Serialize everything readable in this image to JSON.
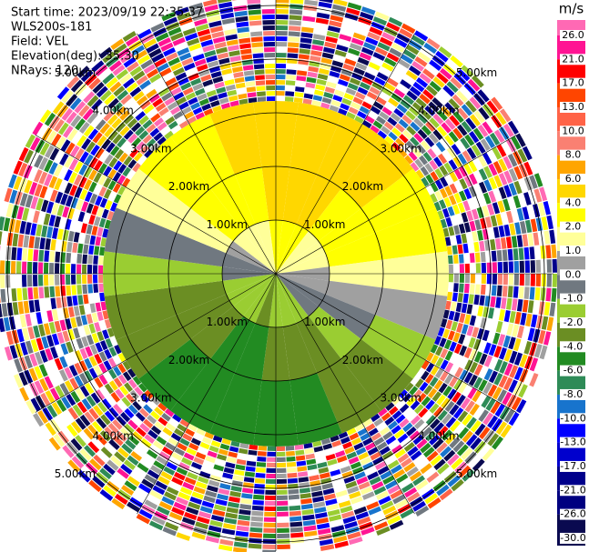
{
  "chart_data": {
    "type": "ppi",
    "info": [
      "Start time: 2023/09/19 22:35:37",
      "WLS200s-181",
      "Field: VEL",
      "Elevation(deg): 35.30",
      "NRays: 120"
    ],
    "range_labels": [
      "1.00km",
      "2.00km",
      "3.00km",
      "4.00km",
      "5.00km"
    ],
    "colorbar": {
      "title": "m/s",
      "ticks": [
        {
          "value": 26,
          "label": "26.0"
        },
        {
          "value": 21,
          "label": "21.0"
        },
        {
          "value": 17,
          "label": "17.0"
        },
        {
          "value": 13,
          "label": "13.0"
        },
        {
          "value": 10,
          "label": "10.0"
        },
        {
          "value": 8,
          "label": "8.0"
        },
        {
          "value": 6,
          "label": "6.0"
        },
        {
          "value": 4,
          "label": "4.0"
        },
        {
          "value": 2,
          "label": "2.0"
        },
        {
          "value": 1,
          "label": "1.0"
        },
        {
          "value": 0,
          "label": "0.0"
        },
        {
          "value": -1,
          "label": "-1.0"
        },
        {
          "value": -2,
          "label": "-2.0"
        },
        {
          "value": -4,
          "label": "-4.0"
        },
        {
          "value": -6,
          "label": "-6.0"
        },
        {
          "value": -8,
          "label": "-8.0"
        },
        {
          "value": -10,
          "label": "-10.0"
        },
        {
          "value": -13,
          "label": "-13.0"
        },
        {
          "value": -17,
          "label": "-17.0"
        },
        {
          "value": -21,
          "label": "-21.0"
        },
        {
          "value": -26,
          "label": "-26.0"
        },
        {
          "value": -30,
          "label": "-30.0"
        }
      ],
      "colors": [
        "#ff69b4",
        "#ff1493",
        "#ff0000",
        "#ff4500",
        "#ff6347",
        "#fa8072",
        "#ffa500",
        "#ffd700",
        "#ffff00",
        "#ffff99",
        "#a0a0a0",
        "#707880",
        "#9acd32",
        "#6b8e23",
        "#228b22",
        "#2e8b57",
        "#1874cd",
        "#0000ff",
        "#0000cd",
        "#00008b",
        "#000080",
        "#0a0a50"
      ]
    },
    "velocity": [
      [
        2,
        2.1,
        2,
        1.8,
        1.5,
        1.1,
        0.6,
        0.1,
        -0.5,
        -1,
        -1.4,
        -1.8,
        -2,
        -2.1,
        -2,
        -1.8,
        -1.5,
        -1.1,
        -0.6,
        -0.1,
        0.5,
        1,
        1.4,
        1.8
      ],
      [
        4,
        4.2,
        4.1,
        3.7,
        3,
        2.2,
        1.2,
        0.2,
        -1,
        -2,
        -2.9,
        -3.6,
        -4,
        -4.2,
        -4.1,
        -3.7,
        -3,
        -2.2,
        -1.2,
        -0.2,
        1,
        2,
        2.9,
        3.6
      ],
      [
        5,
        5.2,
        5.1,
        4.6,
        3.8,
        2.8,
        1.5,
        0.2,
        -1.2,
        -2.5,
        -3.6,
        -4.5,
        -5,
        -5.2,
        -5.1,
        -4.6,
        -3.8,
        -2.8,
        -1.5,
        -0.2,
        1.2,
        2.5,
        3.6,
        4.5
      ]
    ]
  }
}
